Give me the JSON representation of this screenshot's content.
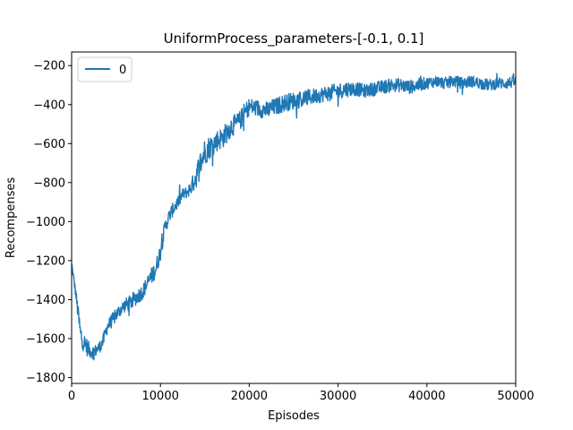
{
  "chart_data": {
    "type": "line",
    "title": "UniformProcess_parameters-[-0.1, 0.1]",
    "xlabel": "Episodes",
    "ylabel": "Recompenses",
    "xlim": [
      0,
      50000
    ],
    "ylim": [
      -1830,
      -130
    ],
    "x_ticks": [
      0,
      10000,
      20000,
      30000,
      40000,
      50000
    ],
    "x_tick_labels": [
      "0",
      "10000",
      "20000",
      "30000",
      "40000",
      "50000"
    ],
    "y_ticks": [
      -1800,
      -1600,
      -1400,
      -1200,
      -1000,
      -800,
      -600,
      -400,
      -200
    ],
    "y_tick_labels": [
      "−1800",
      "−1600",
      "−1400",
      "−1200",
      "−1000",
      "−800",
      "−600",
      "−400",
      "−200"
    ],
    "legend_position": "upper-left",
    "grid": false,
    "series": [
      {
        "name": "0",
        "color": "#1f77b4",
        "x": [
          0,
          500,
          1000,
          1500,
          2000,
          2500,
          3000,
          3500,
          4000,
          4500,
          5000,
          5500,
          6000,
          6500,
          7000,
          7500,
          8000,
          8500,
          9000,
          9500,
          10000,
          10500,
          11000,
          11500,
          12000,
          12500,
          13000,
          13500,
          14000,
          14500,
          15000,
          15500,
          16000,
          16500,
          17000,
          17500,
          18000,
          18500,
          19000,
          19500,
          20000,
          21000,
          22000,
          23000,
          24000,
          25000,
          26000,
          27000,
          28000,
          29000,
          30000,
          31000,
          32000,
          33000,
          34000,
          35000,
          36000,
          37000,
          38000,
          39000,
          40000,
          41000,
          42000,
          43000,
          44000,
          45000,
          46000,
          47000,
          48000,
          49000,
          50000
        ],
        "y": [
          -1220,
          -1380,
          -1580,
          -1630,
          -1660,
          -1670,
          -1650,
          -1620,
          -1540,
          -1510,
          -1480,
          -1450,
          -1430,
          -1420,
          -1400,
          -1380,
          -1360,
          -1320,
          -1280,
          -1240,
          -1150,
          -1030,
          -970,
          -930,
          -900,
          -860,
          -850,
          -820,
          -770,
          -700,
          -640,
          -620,
          -600,
          -580,
          -570,
          -540,
          -510,
          -500,
          -480,
          -440,
          -410,
          -420,
          -430,
          -410,
          -390,
          -380,
          -370,
          -360,
          -350,
          -340,
          -330,
          -320,
          -320,
          -330,
          -320,
          -310,
          -300,
          -300,
          -310,
          -300,
          -290,
          -280,
          -290,
          -280,
          -290,
          -280,
          -290,
          -300,
          -290,
          -290,
          -280
        ],
        "noise": [
          15,
          30,
          60,
          50,
          40,
          35,
          30,
          35,
          35,
          35,
          35,
          35,
          35,
          40,
          40,
          40,
          40,
          40,
          45,
          45,
          45,
          40,
          35,
          35,
          35,
          30,
          30,
          40,
          60,
          70,
          70,
          60,
          55,
          55,
          55,
          55,
          55,
          50,
          50,
          50,
          45,
          45,
          45,
          45,
          45,
          45,
          45,
          40,
          40,
          40,
          40,
          40,
          35,
          35,
          35,
          35,
          35,
          35,
          35,
          35,
          30,
          30,
          30,
          30,
          30,
          30,
          30,
          30,
          30,
          30,
          30
        ]
      }
    ]
  }
}
